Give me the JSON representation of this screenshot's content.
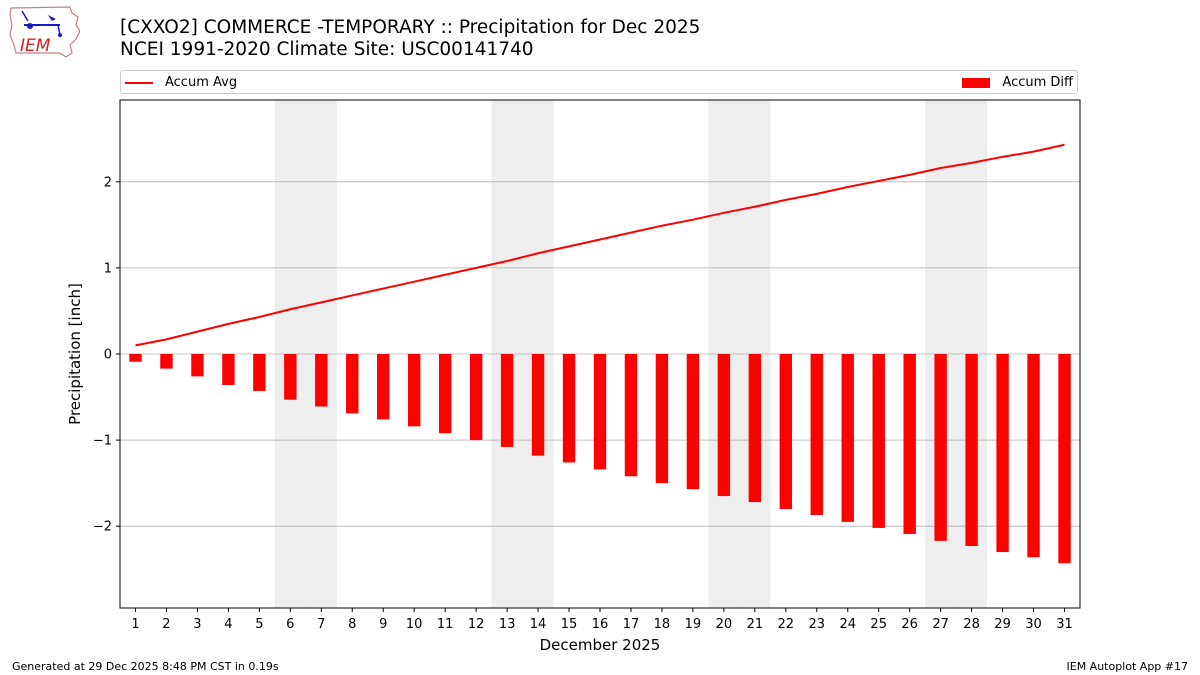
{
  "title_line1": "[CXXO2] COMMERCE -TEMPORARY :: Precipitation for Dec 2025",
  "title_line2": "NCEI 1991-2020 Climate Site: USC00141740",
  "logo_text": "IEM",
  "footer": {
    "left": "Generated at 29 Dec 2025 8:48 PM CST in 0.19s",
    "right": "IEM Autoplot App #17"
  },
  "colors": {
    "series": "#ff0000",
    "weekend_shade": "#eeeeee",
    "grid": "#b0b0b0"
  },
  "chart_data": {
    "type": "bar",
    "xlabel": "December 2025",
    "ylabel": "Precipitation [inch]",
    "ylim": [
      -2.95,
      2.95
    ],
    "xlim": [
      0.5,
      31.5
    ],
    "yticks": [
      -2,
      -1,
      0,
      1,
      2
    ],
    "ytick_labels": [
      "−2",
      "−1",
      "0",
      "1",
      "2"
    ],
    "grid": "horizontal",
    "legend": "top",
    "weekend_shade_days": [
      6,
      7,
      13,
      14,
      20,
      21,
      27,
      28
    ],
    "categories": [
      1,
      2,
      3,
      4,
      5,
      6,
      7,
      8,
      9,
      10,
      11,
      12,
      13,
      14,
      15,
      16,
      17,
      18,
      19,
      20,
      21,
      22,
      23,
      24,
      25,
      26,
      27,
      28,
      29,
      30,
      31
    ],
    "series": [
      {
        "name": "Accum Diff",
        "kind": "bar",
        "values": [
          -0.09,
          -0.17,
          -0.26,
          -0.36,
          -0.43,
          -0.53,
          -0.61,
          -0.69,
          -0.76,
          -0.84,
          -0.92,
          -1.0,
          -1.08,
          -1.18,
          -1.26,
          -1.34,
          -1.42,
          -1.5,
          -1.57,
          -1.65,
          -1.72,
          -1.8,
          -1.87,
          -1.95,
          -2.02,
          -2.09,
          -2.17,
          -2.23,
          -2.3,
          -2.36,
          -2.43
        ]
      },
      {
        "name": "Accum Avg",
        "kind": "line",
        "values": [
          0.1,
          0.17,
          0.26,
          0.35,
          0.43,
          0.52,
          0.6,
          0.68,
          0.76,
          0.84,
          0.92,
          1.0,
          1.08,
          1.17,
          1.25,
          1.33,
          1.41,
          1.49,
          1.56,
          1.64,
          1.71,
          1.79,
          1.86,
          1.94,
          2.01,
          2.08,
          2.16,
          2.22,
          2.29,
          2.35,
          2.43
        ]
      }
    ]
  }
}
